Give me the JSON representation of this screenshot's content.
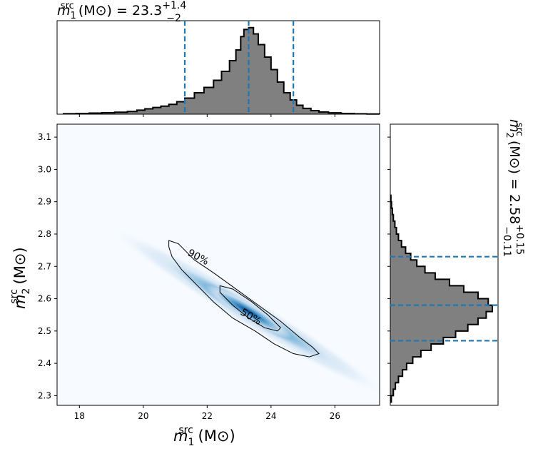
{
  "chart_data": [
    {
      "panel": "top-marginal",
      "type": "histogram",
      "title": {
        "var": "m",
        "sub": "1",
        "sup": "src",
        "unit": "(M⊙) = 23.3",
        "up": "+1.4",
        "down": "−2"
      },
      "xlim": [
        17.3,
        27.4
      ],
      "x_ticks": [
        18,
        20,
        22,
        24,
        26
      ],
      "median": 23.3,
      "lower": 21.3,
      "upper": 24.7,
      "bins": [
        [
          17.6,
          0.002
        ],
        [
          17.9,
          0.003
        ],
        [
          18.2,
          0.004
        ],
        [
          18.5,
          0.005
        ],
        [
          18.8,
          0.006
        ],
        [
          19.1,
          0.008
        ],
        [
          19.4,
          0.01
        ],
        [
          19.7,
          0.015
        ],
        [
          20.0,
          0.03
        ],
        [
          20.3,
          0.05
        ],
        [
          20.6,
          0.065
        ],
        [
          20.9,
          0.08
        ],
        [
          21.2,
          0.1
        ],
        [
          21.5,
          0.14
        ],
        [
          21.8,
          0.18
        ],
        [
          22.1,
          0.24
        ],
        [
          22.4,
          0.32
        ],
        [
          22.7,
          0.44
        ],
        [
          23.0,
          0.62
        ],
        [
          23.3,
          0.85
        ],
        [
          23.6,
          1.0
        ],
        [
          23.9,
          0.84
        ],
        [
          24.2,
          0.64
        ],
        [
          24.5,
          0.42
        ],
        [
          24.8,
          0.28
        ],
        [
          25.1,
          0.16
        ],
        [
          25.4,
          0.1
        ],
        [
          25.7,
          0.06
        ],
        [
          26.0,
          0.04
        ],
        [
          26.3,
          0.025
        ],
        [
          26.6,
          0.015
        ],
        [
          26.9,
          0.008
        ],
        [
          27.2,
          0.004
        ]
      ],
      "step_x": [
        17.5,
        17.9,
        18.3,
        18.7,
        19.1,
        19.5,
        19.8,
        20.05,
        20.3,
        20.55,
        20.8,
        21.05,
        21.3,
        21.6,
        21.9,
        22.2,
        22.45,
        22.7,
        22.9,
        23.05,
        23.15,
        23.3,
        23.45,
        23.6,
        23.8,
        24.0,
        24.2,
        24.4,
        24.6,
        24.8,
        25.0,
        25.25,
        25.5,
        25.8,
        26.2,
        26.6,
        27.0,
        27.4
      ],
      "step_y": [
        0.005,
        0.008,
        0.012,
        0.016,
        0.022,
        0.03,
        0.045,
        0.06,
        0.075,
        0.09,
        0.11,
        0.14,
        0.18,
        0.24,
        0.3,
        0.38,
        0.48,
        0.6,
        0.72,
        0.87,
        0.95,
        0.97,
        0.9,
        0.78,
        0.64,
        0.5,
        0.36,
        0.24,
        0.16,
        0.1,
        0.065,
        0.04,
        0.025,
        0.015,
        0.008,
        0.004,
        0.002
      ]
    },
    {
      "panel": "joint",
      "type": "heatmap",
      "xlabel": {
        "var": "m",
        "sub": "1",
        "sup": "src",
        "unit": "(M⊙)"
      },
      "ylabel": {
        "var": "m",
        "sub": "2",
        "sup": "src",
        "unit": "(M⊙)"
      },
      "xlim": [
        17.3,
        27.4
      ],
      "ylim": [
        2.27,
        3.14
      ],
      "x_ticks": [
        18,
        20,
        22,
        24,
        26
      ],
      "y_ticks": [
        2.3,
        2.4,
        2.5,
        2.6,
        2.7,
        2.8,
        2.9,
        3.0,
        3.1
      ],
      "density_center": [
        23.3,
        2.56
      ],
      "contour_levels": [
        "90%",
        "50%"
      ],
      "contour_90": [
        [
          20.8,
          2.78
        ],
        [
          21.1,
          2.77
        ],
        [
          21.6,
          2.72
        ],
        [
          22.2,
          2.68
        ],
        [
          22.9,
          2.63
        ],
        [
          23.6,
          2.58
        ],
        [
          24.3,
          2.53
        ],
        [
          24.9,
          2.48
        ],
        [
          25.3,
          2.45
        ],
        [
          25.5,
          2.43
        ],
        [
          25.2,
          2.42
        ],
        [
          24.7,
          2.43
        ],
        [
          24.1,
          2.46
        ],
        [
          23.5,
          2.5
        ],
        [
          22.8,
          2.54
        ],
        [
          22.2,
          2.59
        ],
        [
          21.7,
          2.64
        ],
        [
          21.2,
          2.69
        ],
        [
          20.9,
          2.73
        ],
        [
          20.8,
          2.76
        ]
      ],
      "contour_50": [
        [
          22.4,
          2.64
        ],
        [
          22.8,
          2.63
        ],
        [
          23.4,
          2.59
        ],
        [
          23.9,
          2.55
        ],
        [
          24.3,
          2.51
        ],
        [
          24.2,
          2.5
        ],
        [
          23.8,
          2.51
        ],
        [
          23.3,
          2.54
        ],
        [
          22.8,
          2.58
        ],
        [
          22.4,
          2.62
        ]
      ]
    },
    {
      "panel": "right-marginal",
      "type": "histogram",
      "title": {
        "var": "m",
        "sub": "2",
        "sup": "src",
        "unit": "(M⊙) = 2.58",
        "up": "+0.15",
        "down": "−0.11"
      },
      "ylim": [
        2.27,
        3.14
      ],
      "median": 2.58,
      "lower": 2.47,
      "upper": 2.73,
      "step_y": [
        2.28,
        2.3,
        2.32,
        2.34,
        2.36,
        2.38,
        2.4,
        2.42,
        2.44,
        2.46,
        2.48,
        2.5,
        2.52,
        2.54,
        2.56,
        2.58,
        2.6,
        2.62,
        2.64,
        2.66,
        2.68,
        2.7,
        2.72,
        2.74,
        2.76,
        2.78,
        2.8,
        2.82,
        2.84,
        2.86,
        2.88,
        2.9,
        2.92
      ],
      "step_w": [
        0.01,
        0.03,
        0.05,
        0.08,
        0.12,
        0.16,
        0.22,
        0.3,
        0.4,
        0.52,
        0.64,
        0.76,
        0.86,
        0.94,
        1.0,
        0.96,
        0.86,
        0.72,
        0.58,
        0.44,
        0.34,
        0.26,
        0.2,
        0.15,
        0.11,
        0.08,
        0.06,
        0.045,
        0.03,
        0.02,
        0.012,
        0.006
      ]
    }
  ]
}
